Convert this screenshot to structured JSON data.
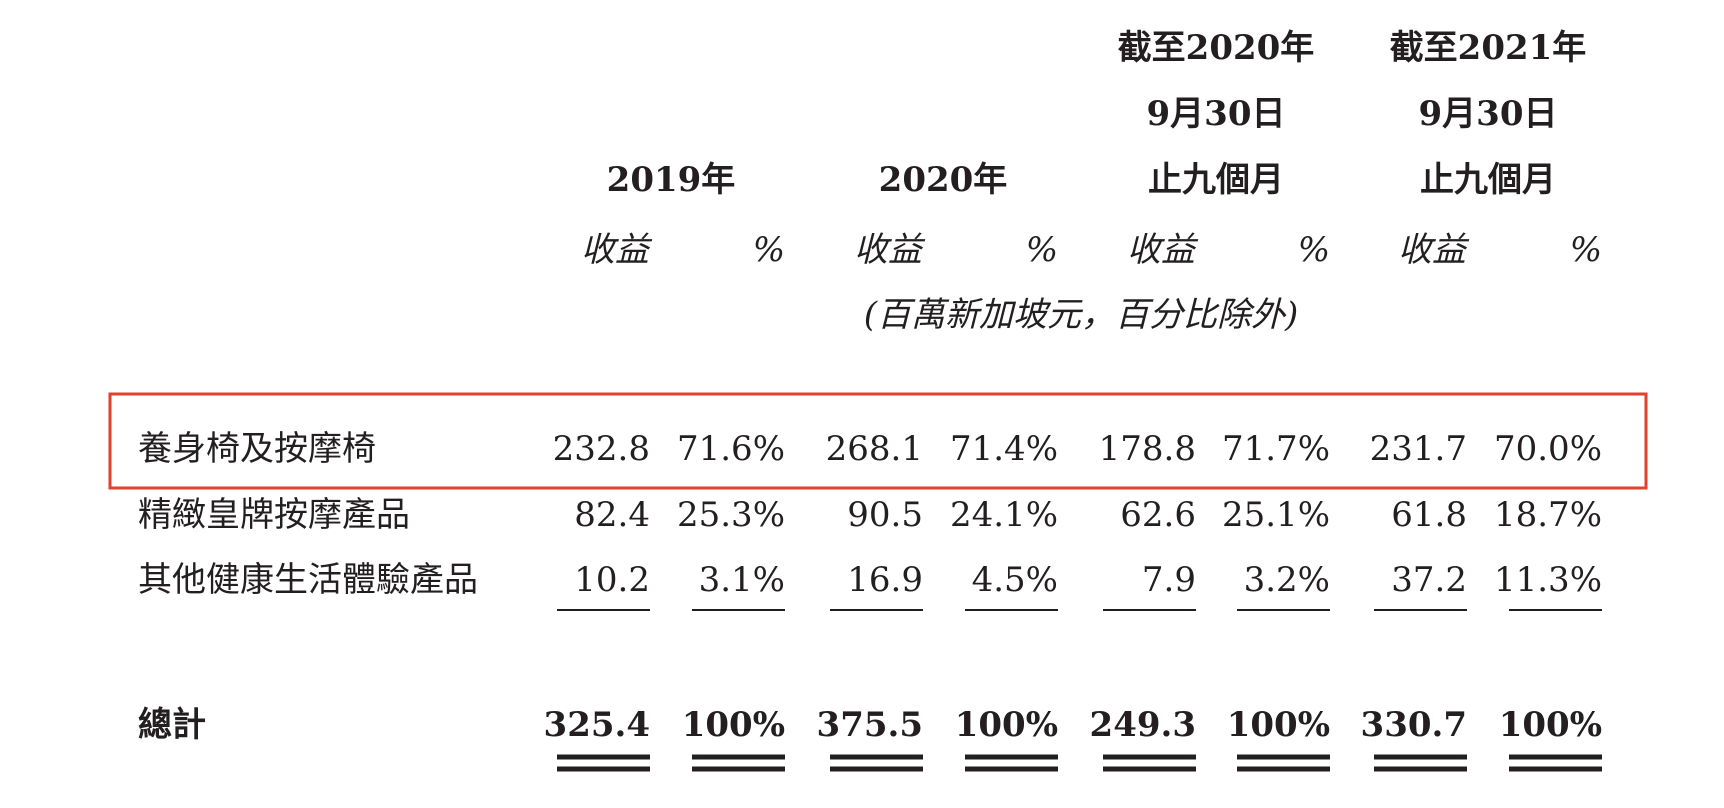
{
  "table": {
    "periods": [
      {
        "lines": [
          "2019年"
        ]
      },
      {
        "lines": [
          "2020年"
        ]
      },
      {
        "lines": [
          "截至2020年",
          "9月30日",
          "止九個月"
        ]
      },
      {
        "lines": [
          "截至2021年",
          "9月30日",
          "止九個月"
        ]
      }
    ],
    "subheaders": [
      "收益",
      "%"
    ],
    "unit_note": "(百萬新加坡元，百分比除外)",
    "rows": [
      {
        "label": "養身椅及按摩椅",
        "cells": [
          "232.8",
          "71.6%",
          "268.1",
          "71.4%",
          "178.8",
          "71.7%",
          "231.7",
          "70.0%"
        ]
      },
      {
        "label": "精緻皇牌按摩產品",
        "cells": [
          "82.4",
          "25.3%",
          "90.5",
          "24.1%",
          "62.6",
          "25.1%",
          "61.8",
          "18.7%"
        ]
      },
      {
        "label": "其他健康生活體驗產品",
        "cells": [
          "10.2",
          "3.1%",
          "16.9",
          "4.5%",
          "7.9",
          "3.2%",
          "37.2",
          "11.3%"
        ]
      }
    ],
    "total": {
      "label": "總計",
      "cells": [
        "325.4",
        "100%",
        "375.5",
        "100%",
        "249.3",
        "100%",
        "330.7",
        "100%"
      ]
    }
  }
}
